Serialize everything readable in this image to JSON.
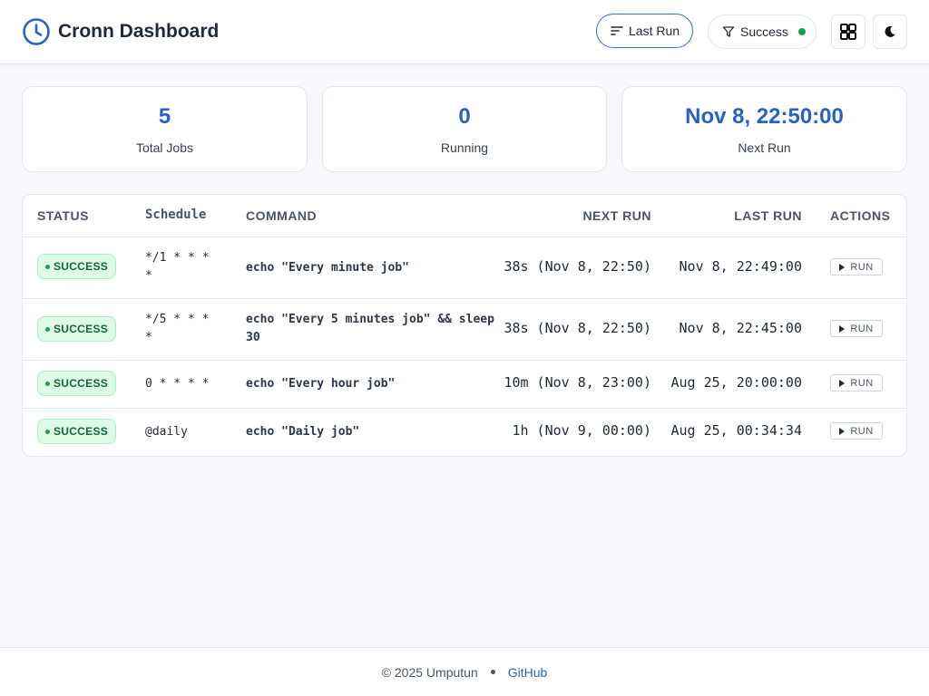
{
  "app": {
    "title": "Cronn Dashboard"
  },
  "header": {
    "sort_label": "Last Run",
    "filter_label": "Success",
    "accent": "#2563c9"
  },
  "stats": [
    {
      "value": "5",
      "label": "Total Jobs"
    },
    {
      "value": "0",
      "label": "Running"
    },
    {
      "value": "Nov 8, 22:50:00",
      "label": "Next Run"
    }
  ],
  "table": {
    "headers": {
      "status": "Status",
      "schedule": "Schedule",
      "command": "Command",
      "next_run": "Next Run",
      "last_run": "Last Run",
      "actions": "Actions"
    },
    "rows": [
      {
        "status": "SUCCESS",
        "schedule": "*/1 * * * *",
        "command": "echo \"Every minute job\"",
        "next_run": "38s (Nov 8, 22:50)",
        "last_run": "Nov 8, 22:49:00",
        "action": "RUN"
      },
      {
        "status": "SUCCESS",
        "schedule": "*/5 * * * *",
        "command": "echo \"Every 5 minutes job\" && sleep 30",
        "next_run": "38s (Nov 8, 22:50)",
        "last_run": "Nov 8, 22:45:00",
        "action": "RUN"
      },
      {
        "status": "SUCCESS",
        "schedule": "0 * * * *",
        "command": "echo \"Every hour job\"",
        "next_run": "10m (Nov 8, 23:00)",
        "last_run": "Aug 25, 20:00:00",
        "action": "RUN"
      },
      {
        "status": "SUCCESS",
        "schedule": "@daily",
        "command": "echo \"Daily job\"",
        "next_run": "1h (Nov 9, 00:00)",
        "last_run": "Aug 25, 00:34:34",
        "action": "RUN"
      }
    ]
  },
  "footer": {
    "copyright": "© 2025 Umputun",
    "link": "GitHub"
  },
  "icons": [
    "clock-icon",
    "sort-icon",
    "filter-icon",
    "grid-icon",
    "moon-icon",
    "play-icon"
  ]
}
